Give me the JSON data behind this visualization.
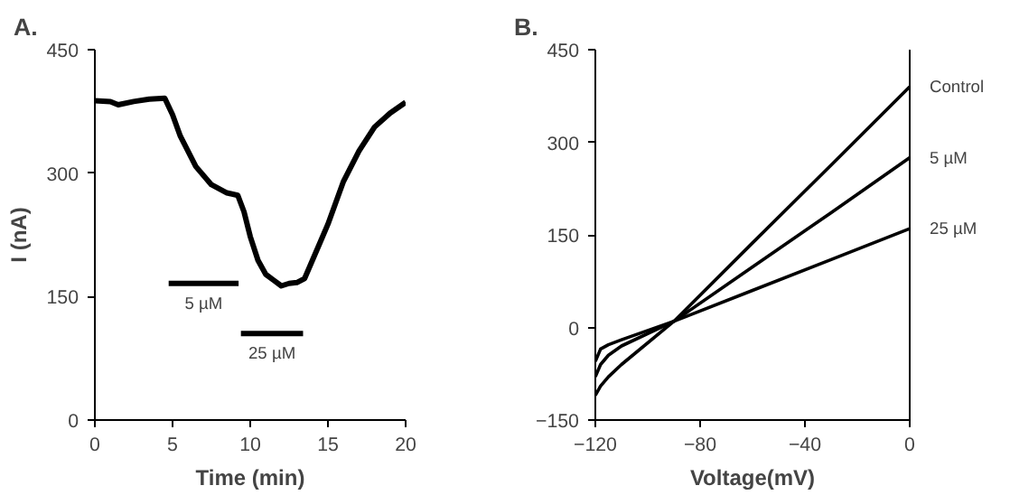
{
  "chart_data": [
    {
      "type": "line",
      "title": "A.",
      "xlabel": "Time (min)",
      "ylabel": "I (nA)",
      "xlim": [
        0,
        20
      ],
      "ylim": [
        0,
        450
      ],
      "xticks": [
        0,
        5,
        10,
        15,
        20
      ],
      "yticks": [
        0,
        150,
        300,
        450
      ],
      "grid": false,
      "series": [
        {
          "color": "#000000",
          "x": [
            0,
            1,
            1.5,
            2.5,
            3.5,
            4.5,
            5,
            5.5,
            6.5,
            7.5,
            8.5,
            9.2,
            9.6,
            10,
            10.5,
            11,
            11.5,
            12,
            12.5,
            13,
            13.5,
            14,
            14.5,
            15,
            15.5,
            16,
            17,
            18,
            19,
            20
          ],
          "values": [
            388,
            387,
            383,
            387,
            390,
            391,
            371,
            345,
            308,
            286,
            276,
            273,
            253,
            223,
            194,
            177,
            170,
            163,
            166,
            167,
            172,
            194,
            216,
            238,
            264,
            290,
            327,
            356,
            373,
            386
          ]
        },
        {
          "name": "5 µM",
          "color": "#000000",
          "x": [
            4.75,
            9.25
          ],
          "values": [
            166,
            166
          ]
        },
        {
          "name": "25 µM",
          "color": "#000000",
          "x": [
            9.4,
            13.4
          ],
          "values": [
            105,
            105
          ]
        }
      ]
    },
    {
      "type": "line",
      "title": "B.",
      "xlabel": "Voltage(mV)",
      "xlim": [
        -120,
        0
      ],
      "ylim": [
        -150,
        450
      ],
      "xticks": [
        -120,
        -80,
        -40,
        0
      ],
      "yticks": [
        -150,
        0,
        150,
        300,
        450
      ],
      "grid": false,
      "series": [
        {
          "name": "Control",
          "color": "#000000",
          "x": [
            -120,
            -118,
            -115,
            -110,
            -90,
            -60,
            -30,
            0
          ],
          "values": [
            -110,
            -95,
            -80,
            -60,
            10,
            137,
            263,
            390
          ]
        },
        {
          "name": "5 µM",
          "color": "#000000",
          "x": [
            -120,
            -118,
            -115,
            -110,
            -90,
            -60,
            -30,
            0
          ],
          "values": [
            -80,
            -60,
            -45,
            -30,
            10,
            98,
            186,
            275
          ]
        },
        {
          "name": "25 µM",
          "color": "#000000",
          "x": [
            -120,
            -118,
            -115,
            -110,
            -100,
            -90,
            -60,
            -30,
            0
          ],
          "values": [
            -55,
            -35,
            -28,
            -20,
            -5,
            10,
            60,
            110,
            160
          ]
        }
      ]
    }
  ]
}
